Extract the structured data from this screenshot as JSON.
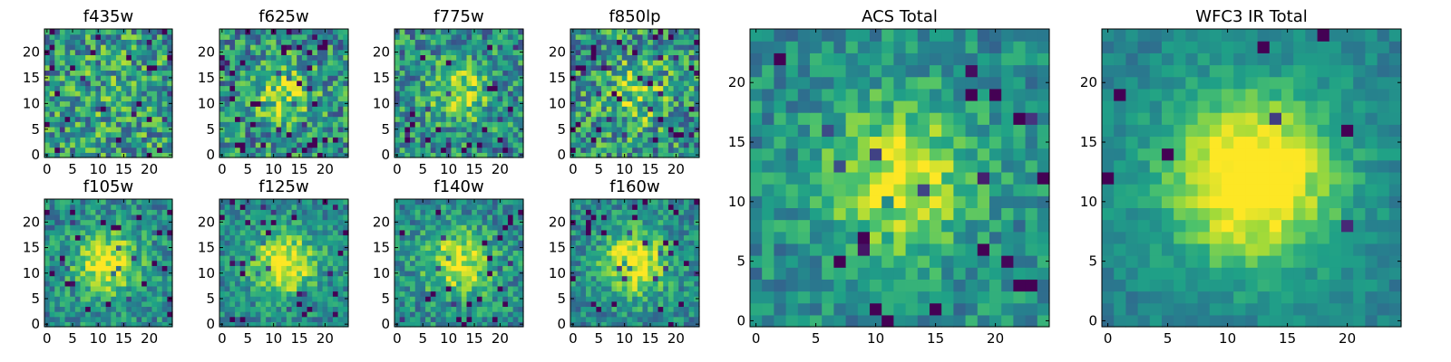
{
  "chart_data": {
    "type": "heatmap",
    "colormap": "viridis",
    "colormap_stops": [
      "#440154",
      "#46327e",
      "#365c8d",
      "#277f8e",
      "#1fa187",
      "#4ac16d",
      "#a0da39",
      "#fde725"
    ],
    "grid": false,
    "panels": [
      {
        "title": "f435w",
        "xticks": [
          "0",
          "5",
          "10",
          "15",
          "20"
        ],
        "yticks": [
          "0",
          "5",
          "10",
          "15",
          "20"
        ],
        "xlim": [
          -0.5,
          24.5
        ],
        "ylim": [
          -0.5,
          24.5
        ],
        "grid_size": 25,
        "field": {
          "amplitude": 0.06,
          "sigma": 6,
          "noise": 0.32,
          "seed": 435,
          "speckle": 0.08
        }
      },
      {
        "title": "f625w",
        "xticks": [
          "0",
          "5",
          "10",
          "15",
          "20"
        ],
        "yticks": [
          "0",
          "5",
          "10",
          "15",
          "20"
        ],
        "xlim": [
          -0.5,
          24.5
        ],
        "ylim": [
          -0.5,
          24.5
        ],
        "grid_size": 25,
        "field": {
          "amplitude": 0.35,
          "sigma": 4,
          "noise": 0.3,
          "seed": 625,
          "speckle": 0.06
        }
      },
      {
        "title": "f775w",
        "xticks": [
          "0",
          "5",
          "10",
          "15",
          "20"
        ],
        "yticks": [
          "0",
          "5",
          "10",
          "15",
          "20"
        ],
        "xlim": [
          -0.5,
          24.5
        ],
        "ylim": [
          -0.5,
          24.5
        ],
        "grid_size": 25,
        "field": {
          "amplitude": 0.38,
          "sigma": 4,
          "noise": 0.28,
          "seed": 775,
          "speckle": 0.05
        }
      },
      {
        "title": "f850lp",
        "xticks": [
          "0",
          "5",
          "10",
          "15",
          "20"
        ],
        "yticks": [
          "0",
          "5",
          "10",
          "15",
          "20"
        ],
        "xlim": [
          -0.5,
          24.5
        ],
        "ylim": [
          -0.5,
          24.5
        ],
        "grid_size": 25,
        "field": {
          "amplitude": 0.3,
          "sigma": 4.5,
          "noise": 0.32,
          "seed": 850,
          "speckle": 0.07
        }
      },
      {
        "title": "f105w",
        "xticks": [
          "0",
          "5",
          "10",
          "15",
          "20"
        ],
        "yticks": [
          "0",
          "5",
          "10",
          "15",
          "20"
        ],
        "xlim": [
          -0.5,
          24.5
        ],
        "ylim": [
          -0.5,
          24.5
        ],
        "grid_size": 25,
        "field": {
          "amplitude": 0.5,
          "sigma": 4.5,
          "noise": 0.22,
          "seed": 105,
          "speckle": 0.04
        }
      },
      {
        "title": "f125w",
        "xticks": [
          "0",
          "5",
          "10",
          "15",
          "20"
        ],
        "yticks": [
          "0",
          "5",
          "10",
          "15",
          "20"
        ],
        "xlim": [
          -0.5,
          24.5
        ],
        "ylim": [
          -0.5,
          24.5
        ],
        "grid_size": 25,
        "field": {
          "amplitude": 0.55,
          "sigma": 4.5,
          "noise": 0.2,
          "seed": 125,
          "speckle": 0.04
        }
      },
      {
        "title": "f140w",
        "xticks": [
          "0",
          "5",
          "10",
          "15",
          "20"
        ],
        "yticks": [
          "0",
          "5",
          "10",
          "15",
          "20"
        ],
        "xlim": [
          -0.5,
          24.5
        ],
        "ylim": [
          -0.5,
          24.5
        ],
        "grid_size": 25,
        "field": {
          "amplitude": 0.5,
          "sigma": 4.5,
          "noise": 0.22,
          "seed": 140,
          "speckle": 0.04
        }
      },
      {
        "title": "f160w",
        "xticks": [
          "0",
          "5",
          "10",
          "15",
          "20"
        ],
        "yticks": [
          "0",
          "5",
          "10",
          "15",
          "20"
        ],
        "xlim": [
          -0.5,
          24.5
        ],
        "ylim": [
          -0.5,
          24.5
        ],
        "grid_size": 25,
        "field": {
          "amplitude": 0.55,
          "sigma": 4.5,
          "noise": 0.2,
          "seed": 160,
          "speckle": 0.05
        }
      },
      {
        "title": "ACS Total",
        "xticks": [
          "0",
          "5",
          "10",
          "15",
          "20"
        ],
        "yticks": [
          "0",
          "5",
          "10",
          "15",
          "20"
        ],
        "xlim": [
          -0.5,
          24.5
        ],
        "ylim": [
          -0.5,
          24.5
        ],
        "grid_size": 25,
        "field": {
          "amplitude": 0.45,
          "sigma": 4.5,
          "noise": 0.18,
          "seed": 1001,
          "speckle": 0.04
        }
      },
      {
        "title": "WFC3 IR Total",
        "xticks": [
          "0",
          "5",
          "10",
          "15",
          "20"
        ],
        "yticks": [
          "0",
          "5",
          "10",
          "15",
          "20"
        ],
        "xlim": [
          -0.5,
          24.5
        ],
        "ylim": [
          -0.5,
          24.5
        ],
        "grid_size": 25,
        "field": {
          "amplitude": 0.7,
          "sigma": 5,
          "noise": 0.1,
          "seed": 2002,
          "speckle": 0.02
        }
      }
    ]
  }
}
